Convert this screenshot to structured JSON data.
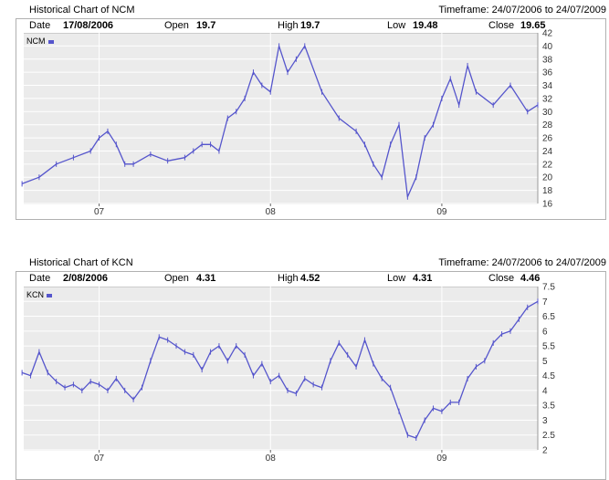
{
  "charts": [
    {
      "title": "Historical Chart of NCM",
      "timeframe_label": "Timeframe:",
      "timeframe_value": "24/07/2006 to 24/07/2009",
      "info": {
        "date_label": "Date",
        "date_value": "17/08/2006",
        "open_label": "Open",
        "open_value": "19.7",
        "high_label": "High",
        "high_value": "19.7",
        "low_label": "Low",
        "low_value": "19.48",
        "close_label": "Close",
        "close_value": "19.65"
      },
      "legend": "NCM"
    },
    {
      "title": "Historical Chart of KCN",
      "timeframe_label": "Timeframe:",
      "timeframe_value": "24/07/2006 to 24/07/2009",
      "info": {
        "date_label": "Date",
        "date_value": "2/08/2006",
        "open_label": "Open",
        "open_value": "4.31",
        "high_label": "High",
        "high_value": "4.52",
        "low_label": "Low",
        "low_value": "4.31",
        "close_label": "Close",
        "close_value": "4.46"
      },
      "legend": "KCN"
    }
  ],
  "chart_data": [
    {
      "type": "line",
      "series": [
        {
          "name": "NCM",
          "color": "#5555cc",
          "x": [
            2006.55,
            2006.65,
            2006.75,
            2006.85,
            2006.95,
            2007.0,
            2007.05,
            2007.1,
            2007.15,
            2007.2,
            2007.3,
            2007.4,
            2007.5,
            2007.55,
            2007.6,
            2007.65,
            2007.7,
            2007.75,
            2007.8,
            2007.85,
            2007.9,
            2007.95,
            2008.0,
            2008.05,
            2008.1,
            2008.15,
            2008.2,
            2008.3,
            2008.4,
            2008.5,
            2008.55,
            2008.6,
            2008.65,
            2008.7,
            2008.75,
            2008.8,
            2008.85,
            2008.9,
            2008.95,
            2009.0,
            2009.05,
            2009.1,
            2009.15,
            2009.2,
            2009.3,
            2009.4,
            2009.5,
            2009.56
          ],
          "y": [
            19,
            20,
            22,
            23,
            24,
            26,
            27,
            25,
            22,
            22,
            23.5,
            22.5,
            23,
            24,
            25,
            25,
            24,
            29,
            30,
            32,
            36,
            34,
            33,
            40,
            36,
            38,
            40,
            33,
            29,
            27,
            25,
            22,
            20,
            25,
            28,
            17,
            20,
            26,
            28,
            32,
            35,
            31,
            37,
            33,
            31,
            34,
            30,
            31
          ]
        }
      ],
      "x_ticks": [
        {
          "value": 2007.0,
          "label": "07"
        },
        {
          "value": 2008.0,
          "label": "08"
        },
        {
          "value": 2009.0,
          "label": "09"
        }
      ],
      "xlim": [
        2006.56,
        2009.56
      ],
      "y_ticks": [
        16,
        18,
        20,
        22,
        24,
        26,
        28,
        30,
        32,
        34,
        36,
        38,
        40,
        42
      ],
      "ylim": [
        16,
        42
      ],
      "grid": true,
      "legend_position": "top-left"
    },
    {
      "type": "line",
      "series": [
        {
          "name": "KCN",
          "color": "#5555cc",
          "x": [
            2006.55,
            2006.6,
            2006.65,
            2006.7,
            2006.75,
            2006.8,
            2006.85,
            2006.9,
            2006.95,
            2007.0,
            2007.05,
            2007.1,
            2007.15,
            2007.2,
            2007.25,
            2007.3,
            2007.35,
            2007.4,
            2007.45,
            2007.5,
            2007.55,
            2007.6,
            2007.65,
            2007.7,
            2007.75,
            2007.8,
            2007.85,
            2007.9,
            2007.95,
            2008.0,
            2008.05,
            2008.1,
            2008.15,
            2008.2,
            2008.25,
            2008.3,
            2008.35,
            2008.4,
            2008.45,
            2008.5,
            2008.55,
            2008.6,
            2008.65,
            2008.7,
            2008.75,
            2008.8,
            2008.85,
            2008.9,
            2008.95,
            2009.0,
            2009.05,
            2009.1,
            2009.15,
            2009.2,
            2009.25,
            2009.3,
            2009.35,
            2009.4,
            2009.45,
            2009.5,
            2009.56
          ],
          "y": [
            4.6,
            4.5,
            5.3,
            4.6,
            4.3,
            4.1,
            4.2,
            4.0,
            4.3,
            4.2,
            4.0,
            4.4,
            4.0,
            3.7,
            4.1,
            5.0,
            5.8,
            5.7,
            5.5,
            5.3,
            5.2,
            4.7,
            5.3,
            5.5,
            5.0,
            5.5,
            5.2,
            4.5,
            4.9,
            4.3,
            4.5,
            4.0,
            3.9,
            4.4,
            4.2,
            4.1,
            5.0,
            5.6,
            5.2,
            4.8,
            5.7,
            4.9,
            4.4,
            4.1,
            3.3,
            2.5,
            2.4,
            3.0,
            3.4,
            3.3,
            3.6,
            3.6,
            4.4,
            4.8,
            5.0,
            5.6,
            5.9,
            6.0,
            6.4,
            6.8,
            7.0
          ]
        }
      ],
      "x_ticks": [
        {
          "value": 2007.0,
          "label": "07"
        },
        {
          "value": 2008.0,
          "label": "08"
        },
        {
          "value": 2009.0,
          "label": "09"
        }
      ],
      "xlim": [
        2006.56,
        2009.56
      ],
      "y_ticks": [
        2,
        2.5,
        3,
        3.5,
        4,
        4.5,
        5,
        5.5,
        6,
        6.5,
        7,
        7.5
      ],
      "ylim": [
        2,
        7.5
      ],
      "grid": true,
      "legend_position": "top-left"
    }
  ]
}
